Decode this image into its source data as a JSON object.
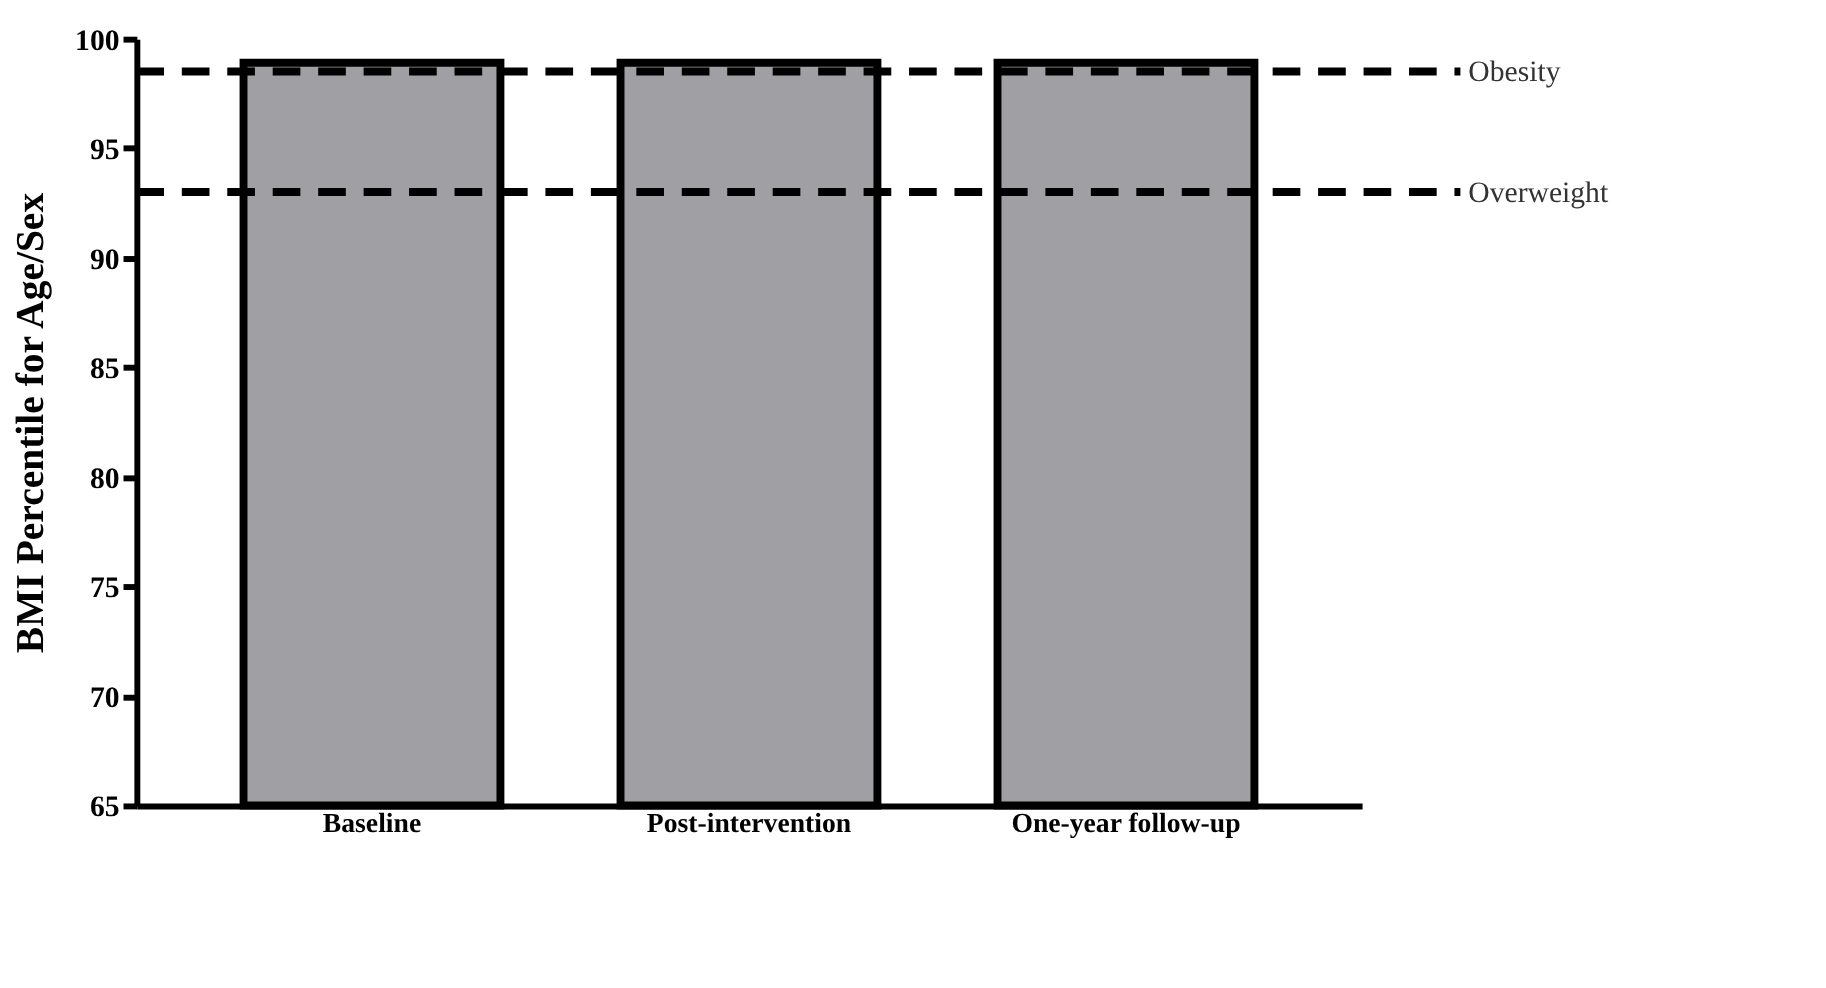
{
  "chart_data": {
    "type": "bar",
    "ylabel": "BMI Percentile for Age/Sex",
    "categories": [
      "Baseline",
      "Post-intervention",
      "One-year follow-up"
    ],
    "values": [
      98.9,
      98.9,
      98.9
    ],
    "color": "#a0a0a4",
    "ylim": [
      65,
      100
    ],
    "yticks": [
      65,
      70,
      75,
      80,
      85,
      90,
      95,
      100
    ],
    "grid": false,
    "ref_lines": [
      {
        "axis": "y",
        "value": 98.5,
        "label": "Obesity",
        "color": "#000000",
        "line_style": "dashed"
      },
      {
        "axis": "y",
        "value": 93,
        "label": "Overweight",
        "color": "#000000",
        "line_style": "dashed"
      }
    ]
  }
}
